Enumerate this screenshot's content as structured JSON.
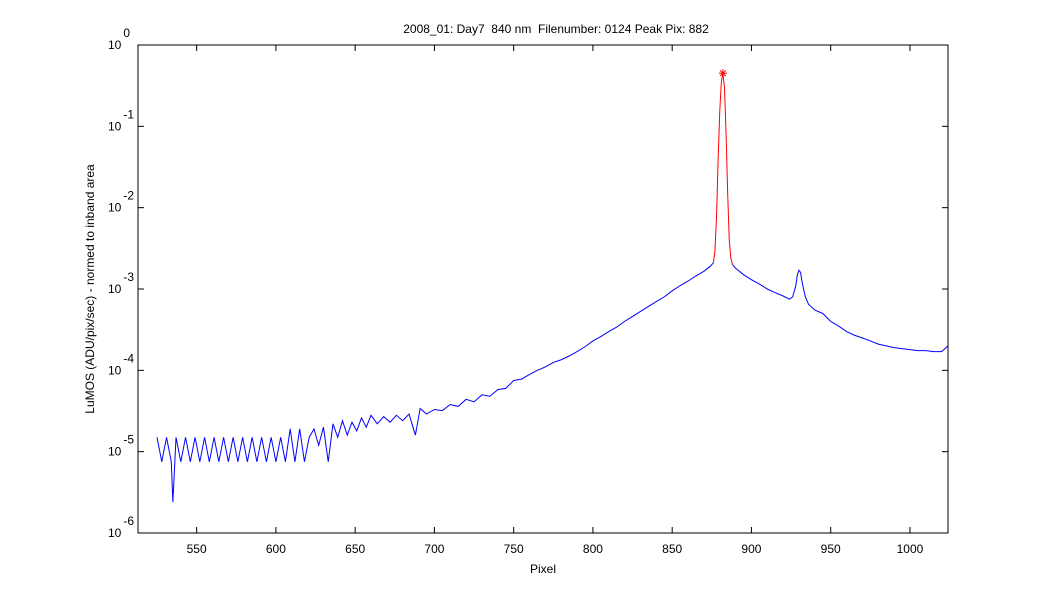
{
  "chart_data": {
    "type": "line",
    "title": "2008_01: Day7  840 nm  Filenumber: 0124 Peak Pix: 882",
    "x_label": "Pixel",
    "y_label": "LuMOS (ADU/pix/sec) - normed to inband area",
    "y_log": true,
    "xlim": [
      513,
      1024
    ],
    "ylim": [
      1e-06,
      1
    ],
    "xticks": [
      550,
      600,
      650,
      700,
      750,
      800,
      850,
      900,
      950,
      1000
    ],
    "yticks": [
      {
        "value": 1e-06,
        "label": "10^-6"
      },
      {
        "value": 1e-05,
        "label": "10^-5"
      },
      {
        "value": 0.0001,
        "label": "10^-4"
      },
      {
        "value": 0.001,
        "label": "10^-3"
      },
      {
        "value": 0.01,
        "label": "10^-2"
      },
      {
        "value": 0.1,
        "label": "10^-1"
      },
      {
        "value": 1,
        "label": "10^0"
      }
    ],
    "series": [
      {
        "color": "#0000ff",
        "x": [
          525,
          528,
          531,
          534,
          535,
          537,
          540,
          543,
          546,
          549,
          552,
          555,
          558,
          561,
          564,
          567,
          570,
          573,
          576,
          579,
          582,
          585,
          588,
          591,
          594,
          597,
          600,
          603,
          606,
          609,
          612,
          615,
          618,
          621,
          624,
          627,
          630,
          633,
          636,
          639,
          642,
          645,
          648,
          651,
          654,
          657,
          660,
          664,
          668,
          672,
          676,
          680,
          684,
          688,
          691,
          695,
          700,
          705,
          710,
          715,
          720,
          725,
          730,
          735,
          740,
          745,
          750,
          755,
          760,
          765,
          770,
          775,
          780,
          785,
          790,
          795,
          800,
          805,
          810,
          815,
          820,
          825,
          830,
          835,
          840,
          845,
          850,
          855,
          860,
          865,
          870,
          874,
          876,
          882,
          888,
          890,
          895,
          900,
          905,
          910,
          915,
          920,
          924,
          926,
          928,
          929,
          930,
          931,
          932,
          934,
          936,
          940,
          945,
          950,
          955,
          960,
          965,
          970,
          975,
          980,
          985,
          990,
          995,
          1000,
          1005,
          1010,
          1015,
          1020,
          1024
        ],
        "values": [
          1.5e-05,
          7.5e-06,
          1.5e-05,
          7.5e-06,
          2.4e-06,
          1.5e-05,
          7.5e-06,
          1.5e-05,
          7.5e-06,
          1.5e-05,
          7.5e-06,
          1.5e-05,
          7.5e-06,
          1.5e-05,
          7.5e-06,
          1.5e-05,
          7.5e-06,
          1.5e-05,
          7.5e-06,
          1.5e-05,
          7.5e-06,
          1.5e-05,
          7.5e-06,
          1.5e-05,
          7.5e-06,
          1.5e-05,
          7.5e-06,
          1.5e-05,
          7.5e-06,
          1.9e-05,
          7.5e-06,
          1.9e-05,
          7.5e-06,
          1.5e-05,
          1.9e-05,
          1.2e-05,
          2e-05,
          7.5e-06,
          2.2e-05,
          1.5e-05,
          2.4e-05,
          1.6e-05,
          2.3e-05,
          1.8e-05,
          2.6e-05,
          2e-05,
          2.8e-05,
          2.2e-05,
          2.7e-05,
          2.3e-05,
          2.8e-05,
          2.4e-05,
          2.9e-05,
          1.6e-05,
          3.4e-05,
          2.9e-05,
          3.3e-05,
          3.2e-05,
          3.8e-05,
          3.6e-05,
          4.4e-05,
          4.1e-05,
          5e-05,
          4.8e-05,
          5.8e-05,
          6e-05,
          7.5e-05,
          7.8e-05,
          8.9e-05,
          0.0001,
          0.00011,
          0.000125,
          0.000135,
          0.00015,
          0.00017,
          0.000195,
          0.00023,
          0.00026,
          0.0003,
          0.00034,
          0.0004,
          0.00046,
          0.00053,
          0.00061,
          0.0007,
          0.0008,
          0.00095,
          0.0011,
          0.00125,
          0.00145,
          0.00165,
          0.0019,
          0.0021,
          null,
          0.002,
          0.0018,
          0.0015,
          0.0013,
          0.00115,
          0.001,
          0.0009,
          0.00082,
          0.00075,
          0.0008,
          0.0011,
          0.0015,
          0.0017,
          0.0016,
          0.0012,
          0.0008,
          0.00065,
          0.00055,
          0.0005,
          0.0004,
          0.00035,
          0.0003,
          0.00027,
          0.00025,
          0.00023,
          0.00021,
          0.0002,
          0.00019,
          0.000185,
          0.00018,
          0.000175,
          0.000175,
          0.00017,
          0.00017,
          0.0002
        ]
      },
      {
        "color": "#ff0000",
        "x": [
          876,
          877,
          878,
          879,
          880,
          881,
          882,
          883,
          884,
          885,
          886,
          887,
          888
        ],
        "values": [
          0.0021,
          0.003,
          0.008,
          0.04,
          0.15,
          0.35,
          0.45,
          0.3,
          0.08,
          0.015,
          0.004,
          0.0024,
          0.002
        ]
      }
    ],
    "peak": {
      "x": 882,
      "value": 0.45,
      "color": "#ff0000"
    }
  }
}
